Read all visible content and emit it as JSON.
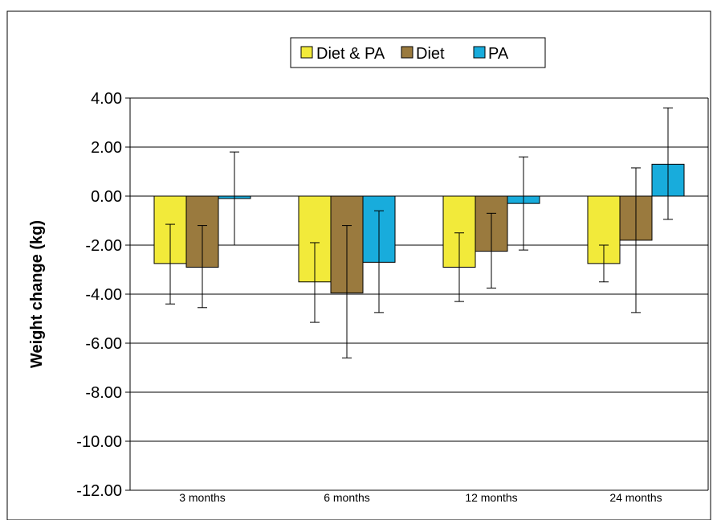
{
  "chart_data": {
    "type": "bar",
    "title": "",
    "xlabel": "",
    "ylabel": "Weight change (kg)",
    "categories": [
      "3 months",
      "6 months",
      "12 months",
      "24 months"
    ],
    "ylim": [
      -12,
      4
    ],
    "yticks": [
      "4.00",
      "2.00",
      "0.00",
      "-2.00",
      "-4.00",
      "-6.00",
      "-8.00",
      "-10.00",
      "-12.00"
    ],
    "ytick_values": [
      4,
      2,
      0,
      -2,
      -4,
      -6,
      -8,
      -10,
      -12
    ],
    "grid": true,
    "legend_position": "top",
    "series": [
      {
        "name": "Diet & PA",
        "color": "#f2ea3a",
        "values": [
          -2.75,
          -3.5,
          -2.9,
          -2.75
        ],
        "error_low": [
          -4.4,
          -5.15,
          -4.3,
          -3.5
        ],
        "error_high": [
          -1.15,
          -1.9,
          -1.5,
          -2.0
        ]
      },
      {
        "name": "Diet",
        "color": "#9a7a3e",
        "values": [
          -2.9,
          -3.95,
          -2.25,
          -1.8
        ],
        "error_low": [
          -4.55,
          -6.6,
          -3.75,
          -4.75
        ],
        "error_high": [
          -1.2,
          -1.2,
          -0.7,
          1.15
        ]
      },
      {
        "name": "PA",
        "color": "#18acdc",
        "values": [
          -0.1,
          -2.7,
          -0.3,
          1.3
        ],
        "error_low": [
          -2.0,
          -4.75,
          -2.2,
          -0.95
        ],
        "error_high": [
          1.8,
          -0.6,
          1.6,
          3.6
        ]
      }
    ]
  }
}
